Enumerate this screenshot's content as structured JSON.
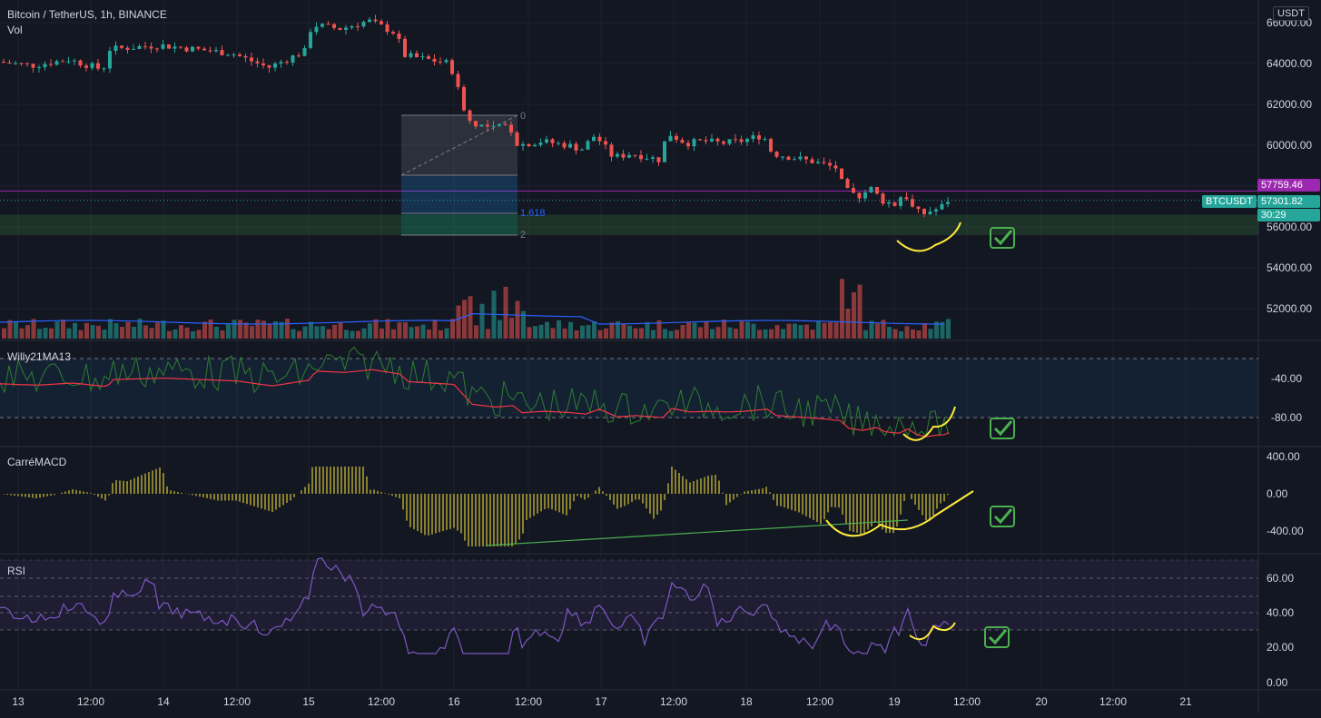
{
  "header": {
    "symbol_line": "Bitcoin / TetherUS, 1h, BINANCE",
    "volume_label": "Vol",
    "currency_button": "USDT"
  },
  "price_axis": {
    "ticks": [
      "66000.00",
      "64000.00",
      "62000.00",
      "60000.00",
      "58000.00",
      "56000.00",
      "54000.00",
      "52000.00"
    ]
  },
  "badges": {
    "high_price": "57759.46",
    "ticker": "BTCUSDT",
    "current_price": "57301.82",
    "countdown": "30:29"
  },
  "fib_labels": [
    "0",
    "1.618",
    "2"
  ],
  "panes": {
    "willy": {
      "label": "Willy21MA13",
      "ticks": [
        "-40.00",
        "-80.00"
      ]
    },
    "macd": {
      "label": "CarréMACD",
      "ticks": [
        "400.00",
        "0.00",
        "-400.00"
      ]
    },
    "rsi": {
      "label": "RSI",
      "ticks": [
        "60.00",
        "40.00",
        "20.00",
        "0.00"
      ]
    }
  },
  "time_axis": {
    "ticks": [
      "13",
      "12:00",
      "14",
      "12:00",
      "15",
      "12:00",
      "16",
      "12:00",
      "17",
      "12:00",
      "18",
      "12:00",
      "19",
      "12:00",
      "20",
      "12:00",
      "21"
    ]
  },
  "colors": {
    "up": "#26a69a",
    "down": "#ef5350",
    "accent_purple": "#9c27b0",
    "check_green": "#4caf50",
    "annotation_yellow": "#ffeb3b",
    "ma_red": "#f23645",
    "willy_green": "#2e7d32",
    "rsi_line": "#7e57c2"
  },
  "chart_data": [
    {
      "type": "candlestick",
      "title": "Bitcoin / TetherUS, 1h, BINANCE",
      "x": [
        "13",
        "14",
        "15",
        "16",
        "17",
        "18",
        "19"
      ],
      "ohlc_summary": [
        {
          "day": "13",
          "open": 64200,
          "high": 65000,
          "low": 63200,
          "close": 64300
        },
        {
          "day": "14",
          "open": 64300,
          "high": 65300,
          "low": 63600,
          "close": 64800
        },
        {
          "day": "15",
          "open": 64800,
          "high": 66200,
          "low": 64600,
          "close": 65900
        },
        {
          "day": "16",
          "open": 65900,
          "high": 66000,
          "low": 58600,
          "close": 60100
        },
        {
          "day": "17",
          "open": 60100,
          "high": 61100,
          "low": 58800,
          "close": 60400
        },
        {
          "day": "18",
          "open": 60400,
          "high": 61000,
          "low": 57300,
          "close": 58300
        },
        {
          "day": "19",
          "open": 58300,
          "high": 58400,
          "low": 55600,
          "close": 57302
        }
      ],
      "ylim": [
        51000,
        67000
      ],
      "levels": {
        "high": 57759.46,
        "current": 57301.82
      },
      "support_zone": [
        55600,
        56600
      ],
      "fibonacci": [
        {
          "label": "0",
          "value": 61400
        },
        {
          "label": "1.618",
          "value": 56700
        },
        {
          "label": "2",
          "value": 55700
        }
      ]
    },
    {
      "type": "bar",
      "title": "Vol"
    },
    {
      "type": "line",
      "title": "Willy21MA13",
      "ylim": [
        -100,
        -20
      ]
    },
    {
      "type": "bar",
      "title": "CarréMACD",
      "ylim": [
        -700,
        450
      ]
    },
    {
      "type": "line",
      "title": "RSI",
      "ylim": [
        0,
        75
      ]
    }
  ]
}
